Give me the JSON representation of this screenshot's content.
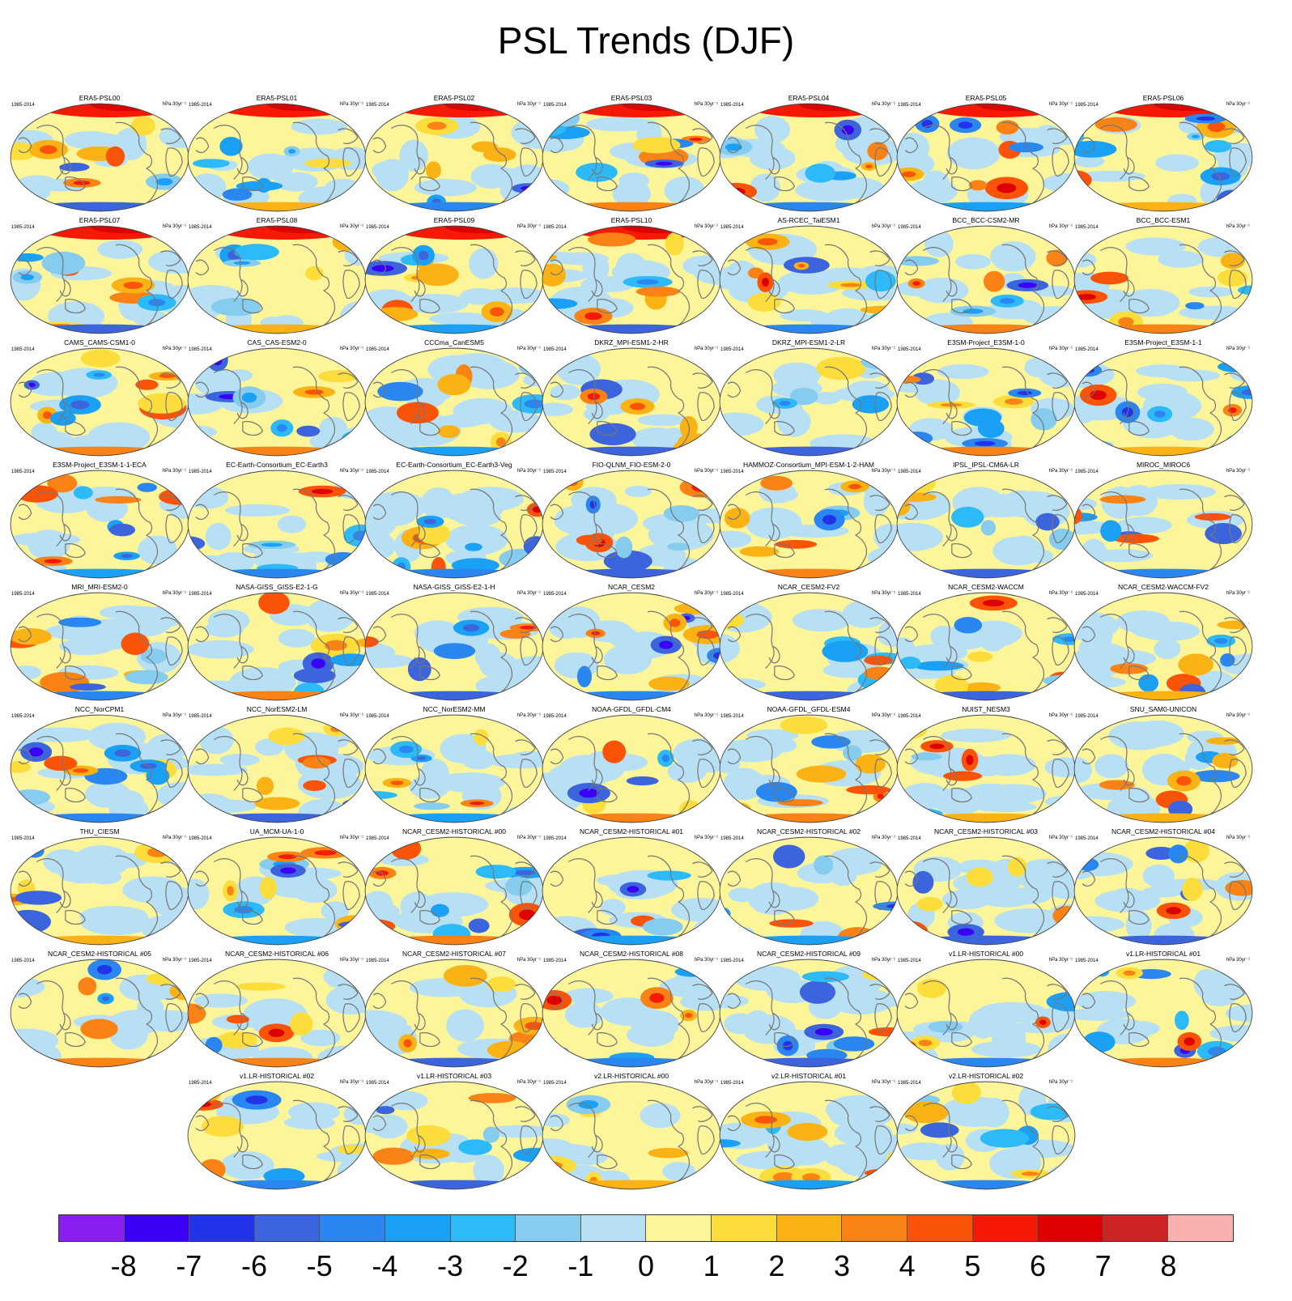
{
  "title": "PSL Trends (DJF)",
  "chart_data": {
    "type": "heatmap",
    "title": "PSL Trends (DJF)",
    "projection": "Robinson global maps",
    "period_label": "1985-2014",
    "units_label": "hPa 30yr⁻¹",
    "panels": [
      "ERA5-PSL00",
      "ERA5-PSL01",
      "ERA5-PSL02",
      "ERA5-PSL03",
      "ERA5-PSL04",
      "ERA5-PSL05",
      "ERA5-PSL06",
      "ERA5-PSL07",
      "ERA5-PSL08",
      "ERA5-PSL09",
      "ERA5-PSL10",
      "AS-RCEC_TaiESM1",
      "BCC_BCC-CSM2-MR",
      "BCC_BCC-ESM1",
      "CAMS_CAMS-CSM1-0",
      "CAS_CAS-ESM2-0",
      "CCCma_CanESM5",
      "DKRZ_MPI-ESM1-2-HR",
      "DKRZ_MPI-ESM1-2-LR",
      "E3SM-Project_E3SM-1-0",
      "E3SM-Project_E3SM-1-1",
      "E3SM-Project_E3SM-1-1-ECA",
      "EC-Earth-Consortium_EC-Earth3",
      "EC-Earth-Consortium_EC-Earth3-Veg",
      "FIO-QLNM_FIO-ESM-2-0",
      "HAMMOZ-Consortium_MPI-ESM-1-2-HAM",
      "IPSL_IPSL-CM6A-LR",
      "MIROC_MIROC6",
      "MRI_MRI-ESM2-0",
      "NASA-GISS_GISS-E2-1-G",
      "NASA-GISS_GISS-E2-1-H",
      "NCAR_CESM2",
      "NCAR_CESM2-FV2",
      "NCAR_CESM2-WACCM",
      "NCAR_CESM2-WACCM-FV2",
      "NCC_NorCPM1",
      "NCC_NorESM2-LM",
      "NCC_NorESM2-MM",
      "NOAA-GFDL_GFDL-CM4",
      "NOAA-GFDL_GFDL-ESM4",
      "NUIST_NESM3",
      "SNU_SAM0-UNICON",
      "THU_CIESM",
      "UA_MCM-UA-1-0",
      "NCAR_CESM2-HISTORICAL  #00",
      "NCAR_CESM2-HISTORICAL  #01",
      "NCAR_CESM2-HISTORICAL  #02",
      "NCAR_CESM2-HISTORICAL  #03",
      "NCAR_CESM2-HISTORICAL  #04",
      "NCAR_CESM2-HISTORICAL  #05",
      "NCAR_CESM2-HISTORICAL  #06",
      "NCAR_CESM2-HISTORICAL  #07",
      "NCAR_CESM2-HISTORICAL  #08",
      "NCAR_CESM2-HISTORICAL  #09",
      "v1.LR-HISTORICAL  #00",
      "v1.LR-HISTORICAL  #01",
      "v1.LR-HISTORICAL  #02",
      "v1.LR-HISTORICAL  #03",
      "v2.LR-HISTORICAL  #00",
      "v2.LR-HISTORICAL  #01",
      "v2.LR-HISTORICAL  #02"
    ],
    "colorbar": {
      "levels": [
        -8,
        -7,
        -6,
        -5,
        -4,
        -3,
        -2,
        -1,
        0,
        1,
        2,
        3,
        4,
        5,
        6,
        7,
        8
      ],
      "labels": [
        "-8",
        "-7",
        "-6",
        "-5",
        "-4",
        "-3",
        "-2",
        "-1",
        "0",
        "1",
        "2",
        "3",
        "4",
        "5",
        "6",
        "7",
        "8"
      ],
      "colors": [
        "#8a1ef0",
        "#3a00f5",
        "#2233e8",
        "#3c64dc",
        "#2a86f0",
        "#1aa0f5",
        "#2cbaf8",
        "#86ccef",
        "#b8e0f4",
        "#fcf59a",
        "#fcdd3c",
        "#fbb214",
        "#fb8316",
        "#fb5408",
        "#f61a06",
        "#dc0000",
        "#cc2424",
        "#fbb0b0"
      ]
    },
    "field_colors": {
      "neutral": "#fcf59a",
      "weak_negative": "#b8e0f4",
      "coastline": "#777777",
      "outline": "#444444"
    }
  }
}
